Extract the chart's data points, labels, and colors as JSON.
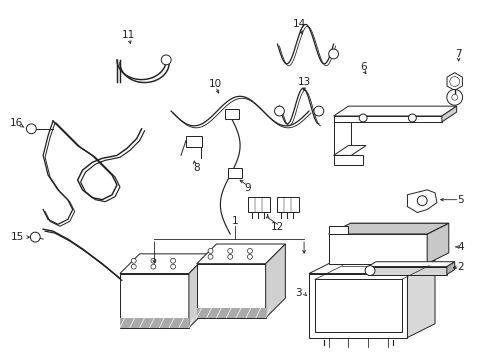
{
  "background_color": "#ffffff",
  "line_color": "#222222",
  "lw": 0.7,
  "fs": 7.5,
  "figsize": [
    4.89,
    3.6
  ],
  "dpi": 100
}
